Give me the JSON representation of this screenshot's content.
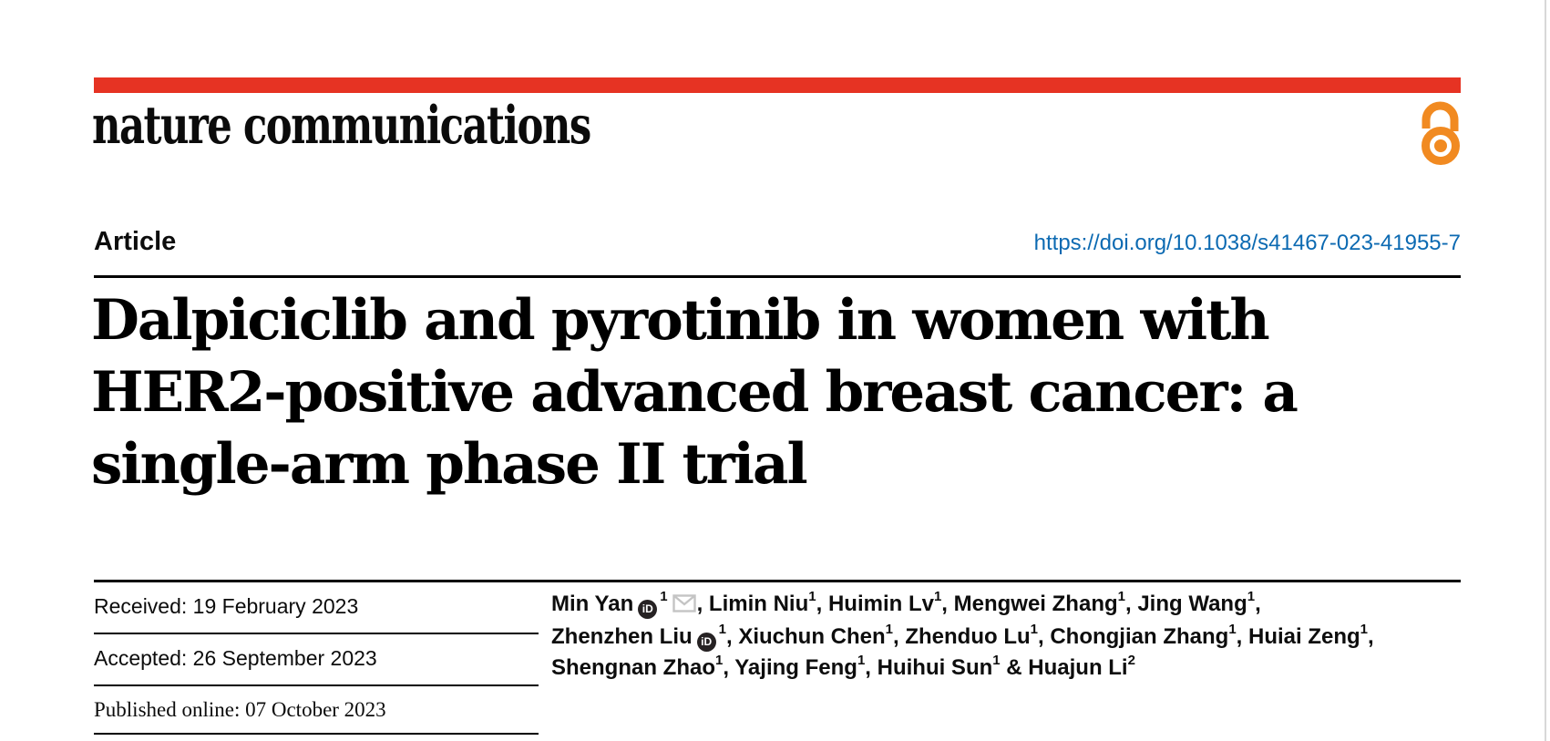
{
  "colors": {
    "brand_red": "#e63323",
    "open_access_orange": "#f18a21",
    "link_blue": "#0c6ab2"
  },
  "masthead": {
    "journal_name": "nature communications",
    "open_access_icon": "open-access-padlock-icon"
  },
  "article_header": {
    "article_type": "Article",
    "doi": "https://doi.org/10.1038/s41467-023-41955-7",
    "title": "Dalpiciclib and pyrotinib in women with\nHER2-positive advanced breast cancer: a\nsingle-arm phase II trial"
  },
  "dates": {
    "received": "Received: 19 February 2023",
    "accepted": "Accepted: 26 September 2023",
    "published": "Published online: 07 October 2023"
  },
  "icons": {
    "orcid_text": "iD",
    "orcid_name": "orcid-icon",
    "envelope_name": "email-envelope-icon"
  },
  "authors": {
    "lines": [
      {
        "parts": [
          {
            "text": "Min Yan"
          },
          {
            "icon": "orcid"
          },
          {
            "sup": "1"
          },
          {
            "icon": "envelope"
          },
          {
            "text": ", Limin Niu"
          },
          {
            "sup": "1"
          },
          {
            "text": ", Huimin Lv"
          },
          {
            "sup": "1"
          },
          {
            "text": ", Mengwei Zhang"
          },
          {
            "sup": "1"
          },
          {
            "text": ", Jing Wang"
          },
          {
            "sup": "1"
          },
          {
            "text": ","
          }
        ]
      },
      {
        "parts": [
          {
            "text": "Zhenzhen Liu"
          },
          {
            "icon": "orcid"
          },
          {
            "sup": "1"
          },
          {
            "text": ", Xiuchun Chen"
          },
          {
            "sup": "1"
          },
          {
            "text": ", Zhenduo Lu"
          },
          {
            "sup": "1"
          },
          {
            "text": ", Chongjian Zhang"
          },
          {
            "sup": "1"
          },
          {
            "text": ", Huiai Zeng"
          },
          {
            "sup": "1"
          },
          {
            "text": ","
          }
        ]
      },
      {
        "parts": [
          {
            "text": "Shengnan Zhao"
          },
          {
            "sup": "1"
          },
          {
            "text": ", Yajing Feng"
          },
          {
            "sup": "1"
          },
          {
            "text": ", Huihui Sun"
          },
          {
            "sup": "1"
          },
          {
            "text": " & Huajun Li"
          },
          {
            "sup": "2"
          }
        ]
      }
    ]
  }
}
